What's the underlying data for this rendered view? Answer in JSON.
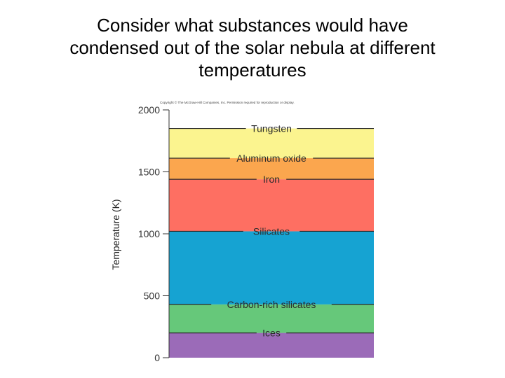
{
  "slide": {
    "title_lines": [
      "Consider what substances would have",
      "condensed out of the solar nebula at different",
      "temperatures"
    ]
  },
  "chart_data": {
    "type": "area",
    "copyright": "Copyright © The McGraw-Hill Companies, Inc. Permission required for reproduction or display.",
    "ylabel": "Temperature (K)",
    "xlabel": "",
    "ylim": [
      0,
      2000
    ],
    "yticks": [
      0,
      500,
      1000,
      1500,
      2000
    ],
    "grid": false,
    "bands": [
      {
        "name": "Ices",
        "from": 0,
        "to": 200,
        "color": "#9b6bb8"
      },
      {
        "name": "Carbon-rich silicates",
        "from": 200,
        "to": 430,
        "color": "#66c87a"
      },
      {
        "name": "Silicates",
        "from": 430,
        "to": 1020,
        "color": "#16a3d2"
      },
      {
        "name": "Iron",
        "from": 1020,
        "to": 1440,
        "color": "#fe6f62"
      },
      {
        "name": "Aluminum oxide",
        "from": 1440,
        "to": 1610,
        "color": "#fba64e"
      },
      {
        "name": "Tungsten",
        "from": 1610,
        "to": 1850,
        "color": "#fbf48f"
      }
    ],
    "condensation_lines": [
      {
        "label": "Ices",
        "temp": 200
      },
      {
        "label": "Carbon-rich silicates",
        "temp": 430
      },
      {
        "label": "Silicates",
        "temp": 1020
      },
      {
        "label": "Iron",
        "temp": 1440
      },
      {
        "label": "Aluminum oxide",
        "temp": 1610
      },
      {
        "label": "Tungsten",
        "temp": 1850
      }
    ]
  }
}
